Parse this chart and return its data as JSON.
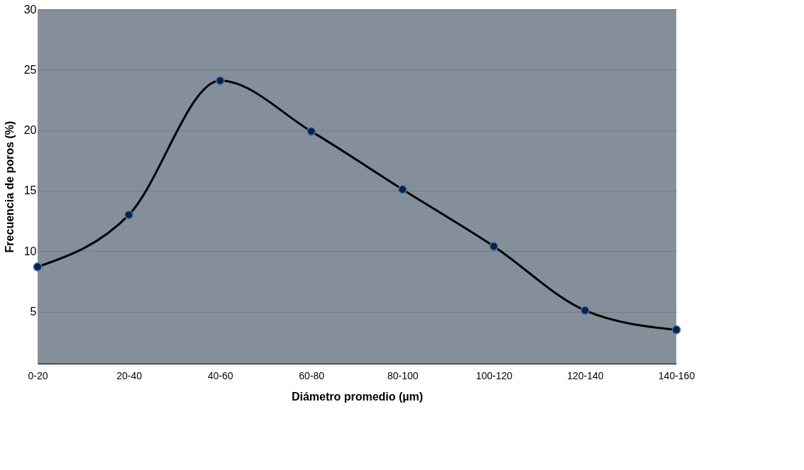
{
  "chart_data": {
    "type": "line",
    "xlabel": "Diámetro promedio (µm)",
    "ylabel": "Frecuencia de poros (%)",
    "categories": [
      "0-20",
      "20-40",
      "40-60",
      "60-80",
      "80-100",
      "100-120",
      "120-140",
      "140-160"
    ],
    "series": [
      {
        "color": "#000000",
        "values": [
          8.7,
          13.0,
          24.1,
          19.9,
          15.1,
          10.4,
          5.1,
          3.5
        ]
      }
    ],
    "ylim": [
      0.7,
      30
    ],
    "yticks": [
      5,
      10,
      15,
      20,
      25,
      30
    ],
    "grid": "y",
    "marker": "circle",
    "line_style": "solid"
  }
}
